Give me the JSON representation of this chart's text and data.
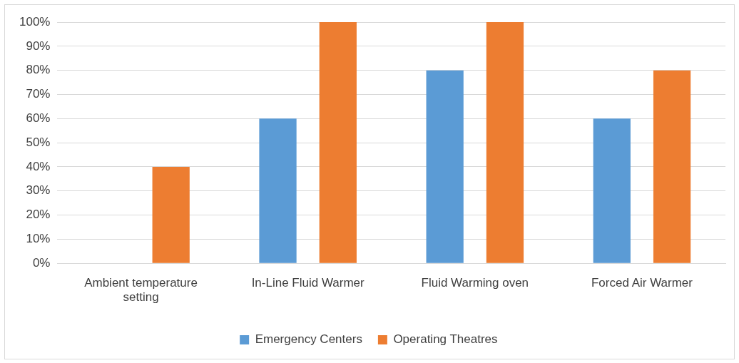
{
  "chart_data": {
    "type": "bar",
    "categories": [
      "Ambient temperature setting",
      "In-Line Fluid Warmer",
      "Fluid Warming oven",
      "Forced Air Warmer"
    ],
    "series": [
      {
        "name": "Emergency Centers",
        "color": "#5b9bd5",
        "values": [
          0,
          60,
          80,
          60
        ]
      },
      {
        "name": "Operating Theatres",
        "color": "#ed7d31",
        "values": [
          40,
          100,
          100,
          80
        ]
      }
    ],
    "ylim": [
      0,
      100
    ],
    "yticks": [
      {
        "value": 0,
        "label": "0%"
      },
      {
        "value": 10,
        "label": "10%"
      },
      {
        "value": 20,
        "label": "20%"
      },
      {
        "value": 30,
        "label": "30%"
      },
      {
        "value": 40,
        "label": "40%"
      },
      {
        "value": 50,
        "label": "50%"
      },
      {
        "value": 60,
        "label": "60%"
      },
      {
        "value": 70,
        "label": "70%"
      },
      {
        "value": 80,
        "label": "80%"
      },
      {
        "value": 90,
        "label": "90%"
      },
      {
        "value": 100,
        "label": "100%"
      }
    ],
    "grid": "y",
    "legend": "bottom"
  }
}
